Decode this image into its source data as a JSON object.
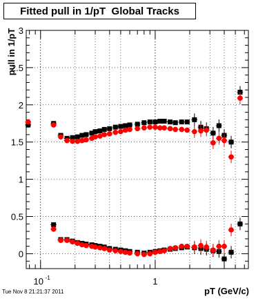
{
  "chart_data": {
    "type": "scatter",
    "title": "Fitted pull in 1/pT  Global Tracks",
    "xlabel": "pT (GeV/c)",
    "ylabel": "pull in 1/pT",
    "xscale": "log",
    "xlim": [
      0.075,
      6.5
    ],
    "ylim": [
      -0.2,
      3.0
    ],
    "grid": true,
    "x_tick_labels": [
      {
        "value": 0.1,
        "base": "10",
        "exp": "-1"
      },
      {
        "value": 1,
        "base": "1",
        "exp": ""
      }
    ],
    "y_tick_labels": [
      "0",
      "0.5",
      "1",
      "1.5",
      "2",
      "2.5",
      "3"
    ],
    "series": [
      {
        "color": "#000000",
        "marker": "square",
        "x": [
          0.078,
          0.13,
          0.15,
          0.17,
          0.19,
          0.21,
          0.23,
          0.25,
          0.28,
          0.3,
          0.33,
          0.36,
          0.4,
          0.45,
          0.5,
          0.55,
          0.6,
          0.7,
          0.8,
          0.9,
          1.0,
          1.1,
          1.2,
          1.35,
          1.5,
          1.7,
          1.9,
          2.2,
          2.5,
          2.8,
          3.2,
          3.6,
          4.0,
          4.6,
          5.5
        ],
        "y": [
          1.73,
          1.75,
          1.59,
          1.55,
          1.56,
          1.57,
          1.59,
          1.6,
          1.62,
          1.64,
          1.65,
          1.67,
          1.68,
          1.7,
          1.71,
          1.72,
          1.73,
          1.74,
          1.76,
          1.77,
          1.77,
          1.78,
          1.78,
          1.77,
          1.76,
          1.77,
          1.77,
          1.8,
          1.7,
          1.68,
          1.62,
          1.72,
          1.59,
          1.5,
          2.17
        ]
      },
      {
        "color": "#ff0000",
        "marker": "circle",
        "x": [
          0.078,
          0.13,
          0.15,
          0.17,
          0.19,
          0.21,
          0.23,
          0.25,
          0.28,
          0.3,
          0.33,
          0.36,
          0.4,
          0.45,
          0.5,
          0.55,
          0.6,
          0.7,
          0.8,
          0.9,
          1.0,
          1.1,
          1.2,
          1.35,
          1.5,
          1.7,
          1.9,
          2.2,
          2.5,
          2.8,
          3.2,
          3.6,
          4.0,
          4.6,
          5.5
        ],
        "y": [
          1.77,
          1.73,
          1.57,
          1.52,
          1.51,
          1.51,
          1.52,
          1.53,
          1.55,
          1.57,
          1.58,
          1.6,
          1.61,
          1.63,
          1.64,
          1.66,
          1.67,
          1.68,
          1.69,
          1.7,
          1.7,
          1.69,
          1.69,
          1.68,
          1.67,
          1.67,
          1.66,
          1.64,
          1.65,
          1.66,
          1.49,
          1.55,
          1.52,
          1.3,
          2.09
        ]
      },
      {
        "color": "#000000",
        "marker": "square",
        "x": [
          0.078,
          0.13,
          0.15,
          0.17,
          0.19,
          0.21,
          0.23,
          0.25,
          0.28,
          0.3,
          0.33,
          0.36,
          0.4,
          0.45,
          0.5,
          0.55,
          0.6,
          0.7,
          0.8,
          0.9,
          1.0,
          1.1,
          1.2,
          1.35,
          1.5,
          1.7,
          1.9,
          2.2,
          2.5,
          2.8,
          3.2,
          3.6,
          4.0,
          4.6,
          5.5
        ],
        "y": [
          null,
          0.39,
          0.19,
          0.19,
          0.17,
          0.15,
          0.14,
          0.13,
          0.12,
          0.11,
          0.1,
          0.09,
          0.07,
          0.06,
          0.05,
          0.04,
          0.03,
          0.02,
          0.01,
          0.02,
          0.03,
          0.04,
          0.05,
          0.06,
          0.07,
          0.08,
          0.09,
          0.08,
          0.07,
          0.06,
          0.04,
          0.03,
          -0.07,
          0.02,
          0.4
        ]
      },
      {
        "color": "#ff0000",
        "marker": "circle",
        "x": [
          0.078,
          0.13,
          0.15,
          0.17,
          0.19,
          0.21,
          0.23,
          0.25,
          0.28,
          0.3,
          0.33,
          0.36,
          0.4,
          0.45,
          0.5,
          0.55,
          0.6,
          0.7,
          0.8,
          0.9,
          1.0,
          1.1,
          1.2,
          1.35,
          1.5,
          1.7,
          1.9,
          2.2,
          2.5,
          2.8,
          3.2,
          3.6,
          4.0,
          4.6,
          5.5
        ],
        "y": [
          null,
          0.33,
          0.18,
          0.18,
          0.16,
          0.14,
          0.12,
          0.11,
          0.1,
          0.09,
          0.08,
          0.07,
          0.05,
          0.04,
          0.03,
          0.02,
          0.01,
          0.0,
          -0.01,
          0.0,
          0.02,
          0.03,
          0.04,
          0.07,
          0.08,
          0.1,
          0.1,
          0.09,
          0.11,
          0.09,
          0.05,
          0.1,
          0.1,
          0.32,
          null
        ]
      }
    ]
  },
  "footer": {
    "timestamp": "Tue Nov  8 21:21:37 2011"
  }
}
